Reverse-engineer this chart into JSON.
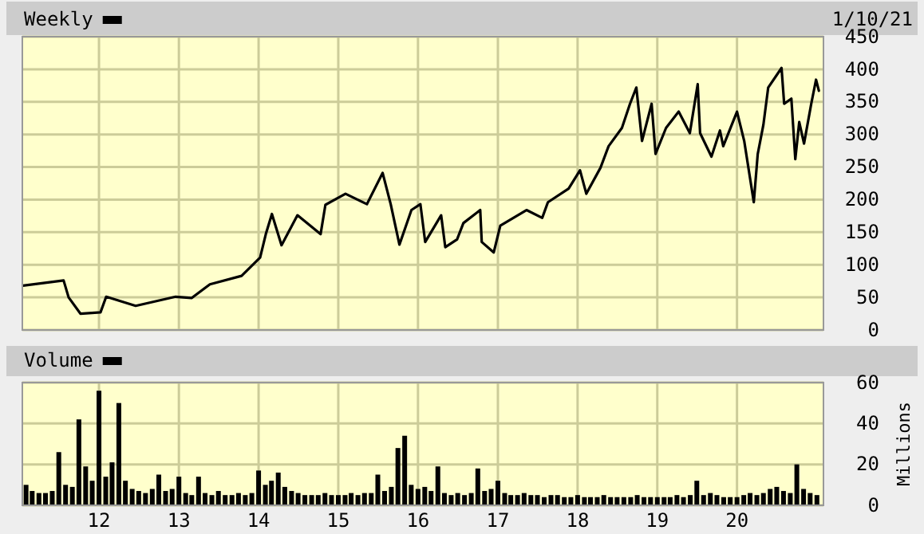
{
  "chart_data": [
    {
      "type": "line",
      "title": "Weekly",
      "annotations": [
        "1/10/21"
      ],
      "grid": true,
      "tick_labels": "y",
      "xlim": [
        "2011-01-15",
        "2021-01-31"
      ],
      "xticks": [
        {
          "value": "2012-01-01",
          "label": null
        },
        {
          "value": "2013-01-01",
          "label": null
        },
        {
          "value": "2014-01-01",
          "label": null
        },
        {
          "value": "2015-01-01",
          "label": null
        },
        {
          "value": "2016-01-01",
          "label": null
        },
        {
          "value": "2017-01-01",
          "label": null
        },
        {
          "value": "2018-01-01",
          "label": null
        },
        {
          "value": "2019-01-01",
          "label": null
        },
        {
          "value": "2020-01-01",
          "label": null
        }
      ],
      "ylim": [
        0,
        450
      ],
      "yticks": [
        0,
        50,
        100,
        150,
        200,
        250,
        300,
        350,
        400,
        450
      ],
      "x": [
        "2011-01-18",
        "2011-07-23",
        "2011-08-15",
        "2011-10-08",
        "2012-01-08",
        "2012-02-03",
        "2012-06-17",
        "2012-12-17",
        "2013-02-28",
        "2013-05-23",
        "2013-10-15",
        "2014-01-08",
        "2014-02-03",
        "2014-03-03",
        "2014-04-16",
        "2014-06-28",
        "2014-10-12",
        "2014-11-03",
        "2015-02-03",
        "2015-05-12",
        "2015-07-23",
        "2015-08-29",
        "2015-10-08",
        "2015-12-02",
        "2016-01-12",
        "2016-02-03",
        "2016-04-16",
        "2016-05-05",
        "2016-06-28",
        "2016-07-27",
        "2016-09-27",
        "2016-10-12",
        "2016-10-19",
        "2016-12-13",
        "2017-01-12",
        "2017-05-12",
        "2017-07-23",
        "2017-08-18",
        "2017-11-21",
        "2018-01-12",
        "2018-02-10",
        "2018-04-16",
        "2018-05-23",
        "2018-07-23",
        "2018-08-29",
        "2018-09-27",
        "2018-10-23",
        "2018-12-06",
        "2018-12-24",
        "2019-02-10",
        "2019-04-09",
        "2019-05-30",
        "2019-07-05",
        "2019-07-16",
        "2019-09-06",
        "2019-10-15",
        "2019-10-30",
        "2020-01-01",
        "2020-02-03",
        "2020-03-18",
        "2020-04-05",
        "2020-05-01",
        "2020-05-23",
        "2020-07-23",
        "2020-08-04",
        "2020-09-06",
        "2020-09-24",
        "2020-10-12",
        "2020-11-03",
        "2020-12-06",
        "2020-12-28",
        "2021-01-10"
      ],
      "series": [
        {
          "color": "#000000",
          "values": [
            68,
            76,
            50,
            25,
            27,
            51,
            37,
            51,
            49,
            70,
            83,
            111,
            147,
            178,
            130,
            176,
            147,
            192,
            209,
            193,
            241,
            193,
            131,
            184,
            193,
            135,
            176,
            127,
            139,
            164,
            180,
            184,
            135,
            119,
            160,
            184,
            172,
            196,
            217,
            245,
            209,
            249,
            282,
            310,
            347,
            372,
            290,
            347,
            270,
            310,
            335,
            302,
            377,
            302,
            266,
            306,
            282,
            335,
            290,
            196,
            270,
            315,
            372,
            402,
            347,
            355,
            262,
            319,
            286,
            347,
            384,
            367
          ]
        }
      ]
    },
    {
      "type": "bar",
      "title": "Volume",
      "ylabel": "Millions",
      "grid": true,
      "xlim": [
        "2011-01-15",
        "2021-01-31"
      ],
      "xticks": [
        {
          "value": "2012-01-01",
          "label": "12"
        },
        {
          "value": "2013-01-01",
          "label": "13"
        },
        {
          "value": "2014-01-01",
          "label": "14"
        },
        {
          "value": "2015-01-01",
          "label": "15"
        },
        {
          "value": "2016-01-01",
          "label": "16"
        },
        {
          "value": "2017-01-01",
          "label": "17"
        },
        {
          "value": "2018-01-01",
          "label": "18"
        },
        {
          "value": "2019-01-01",
          "label": "19"
        },
        {
          "value": "2020-01-01",
          "label": "20"
        }
      ],
      "ylim": [
        0,
        60
      ],
      "yticks": [
        0,
        20,
        40,
        60
      ],
      "x": [
        "2011-02",
        "2011-03",
        "2011-04",
        "2011-05",
        "2011-06",
        "2011-07",
        "2011-08",
        "2011-09",
        "2011-10",
        "2011-11",
        "2011-12",
        "2012-01",
        "2012-02",
        "2012-03",
        "2012-04",
        "2012-05",
        "2012-06",
        "2012-07",
        "2012-08",
        "2012-09",
        "2012-10",
        "2012-11",
        "2012-12",
        "2013-01",
        "2013-02",
        "2013-03",
        "2013-04",
        "2013-05",
        "2013-06",
        "2013-07",
        "2013-08",
        "2013-09",
        "2013-10",
        "2013-11",
        "2013-12",
        "2014-01",
        "2014-02",
        "2014-03",
        "2014-04",
        "2014-05",
        "2014-06",
        "2014-07",
        "2014-08",
        "2014-09",
        "2014-10",
        "2014-11",
        "2014-12",
        "2015-01",
        "2015-02",
        "2015-03",
        "2015-04",
        "2015-05",
        "2015-06",
        "2015-07",
        "2015-08",
        "2015-09",
        "2015-10",
        "2015-11",
        "2015-12",
        "2016-01",
        "2016-02",
        "2016-03",
        "2016-04",
        "2016-05",
        "2016-06",
        "2016-07",
        "2016-08",
        "2016-09",
        "2016-10",
        "2016-11",
        "2016-12",
        "2017-01",
        "2017-02",
        "2017-03",
        "2017-04",
        "2017-05",
        "2017-06",
        "2017-07",
        "2017-08",
        "2017-09",
        "2017-10",
        "2017-11",
        "2017-12",
        "2018-01",
        "2018-02",
        "2018-03",
        "2018-04",
        "2018-05",
        "2018-06",
        "2018-07",
        "2018-08",
        "2018-09",
        "2018-10",
        "2018-11",
        "2018-12",
        "2019-01",
        "2019-02",
        "2019-03",
        "2019-04",
        "2019-05",
        "2019-06",
        "2019-07",
        "2019-08",
        "2019-09",
        "2019-10",
        "2019-11",
        "2019-12",
        "2020-01",
        "2020-02",
        "2020-03",
        "2020-04",
        "2020-05",
        "2020-06",
        "2020-07",
        "2020-08",
        "2020-09",
        "2020-10",
        "2020-11",
        "2020-12",
        "2021-01"
      ],
      "series": [
        {
          "color": "#000000",
          "values": [
            10,
            7,
            6,
            6,
            7,
            26,
            10,
            9,
            42,
            19,
            12,
            56,
            14,
            21,
            50,
            12,
            8,
            7,
            6,
            8,
            15,
            7,
            8,
            14,
            6,
            5,
            14,
            6,
            5,
            7,
            5,
            5,
            6,
            5,
            6,
            17,
            10,
            12,
            16,
            9,
            7,
            6,
            5,
            5,
            5,
            6,
            5,
            5,
            5,
            6,
            5,
            6,
            6,
            15,
            7,
            9,
            28,
            34,
            10,
            8,
            9,
            7,
            19,
            6,
            5,
            6,
            5,
            6,
            18,
            7,
            8,
            12,
            6,
            5,
            5,
            6,
            5,
            5,
            4,
            5,
            5,
            4,
            4,
            5,
            4,
            4,
            4,
            5,
            4,
            4,
            4,
            4,
            5,
            4,
            4,
            4,
            4,
            4,
            5,
            4,
            5,
            12,
            5,
            6,
            5,
            4,
            4,
            4,
            5,
            6,
            5,
            6,
            8,
            9,
            7,
            6,
            20,
            8,
            6,
            5
          ]
        }
      ]
    }
  ]
}
